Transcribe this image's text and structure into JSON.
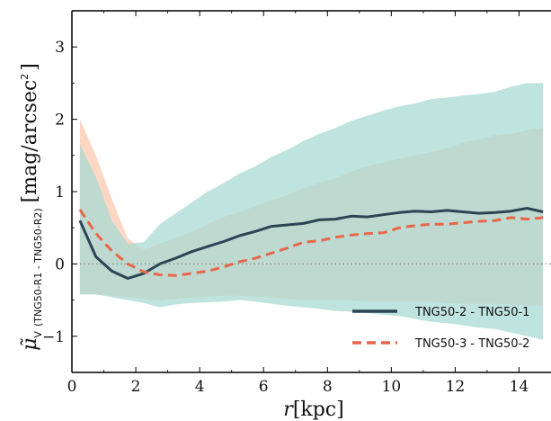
{
  "chart_data": {
    "type": "line",
    "xlabel": "r[kpc]",
    "xlabel_parts": {
      "var": "r",
      "unit": "[kpc]"
    },
    "ylabel_parts": {
      "symbol": "μ̃",
      "sub_v": "V",
      "sub_detail": "(TNG50-R1 - TNG50-R2)",
      "unit": "[mag/arcsec",
      "unit_sup": "2",
      "unit_close": "]"
    },
    "xlim": [
      0,
      15
    ],
    "ylim": [
      -1.5,
      3.5
    ],
    "xticks": [
      0,
      2,
      4,
      6,
      8,
      10,
      12,
      14
    ],
    "xtick_labels": [
      "0",
      "2",
      "4",
      "6",
      "8",
      "10",
      "12",
      "14"
    ],
    "yticks": [
      -1,
      0,
      1,
      2,
      3
    ],
    "ytick_labels": [
      "−1",
      "0",
      "1",
      "2",
      "3"
    ],
    "hline": 0,
    "legend_position": "center-right",
    "series": [
      {
        "name": "TNG50-2 - TNG50-1",
        "color": "#2b4555",
        "dash": "solid",
        "x": [
          0.25,
          0.75,
          1.25,
          1.75,
          2.25,
          2.75,
          3.25,
          3.75,
          4.25,
          4.75,
          5.25,
          5.75,
          6.25,
          6.75,
          7.25,
          7.75,
          8.25,
          8.75,
          9.25,
          9.75,
          10.25,
          10.75,
          11.25,
          11.75,
          12.25,
          12.75,
          13.25,
          13.75,
          14.25,
          14.75
        ],
        "y": [
          0.6,
          0.1,
          -0.1,
          -0.2,
          -0.13,
          0.0,
          0.08,
          0.17,
          0.24,
          0.31,
          0.39,
          0.45,
          0.52,
          0.54,
          0.56,
          0.61,
          0.62,
          0.66,
          0.65,
          0.68,
          0.71,
          0.73,
          0.72,
          0.74,
          0.72,
          0.7,
          0.71,
          0.73,
          0.77,
          0.72
        ]
      },
      {
        "name": "TNG50-3 - TNG50-2",
        "color": "#e8664a",
        "dash": "dashed",
        "x": [
          0.25,
          0.75,
          1.25,
          1.75,
          2.25,
          2.75,
          3.25,
          3.75,
          4.25,
          4.75,
          5.25,
          5.75,
          6.25,
          6.75,
          7.25,
          7.75,
          8.25,
          8.75,
          9.25,
          9.75,
          10.25,
          10.75,
          11.25,
          11.75,
          12.25,
          12.75,
          13.25,
          13.75,
          14.25,
          14.75
        ],
        "y": [
          0.75,
          0.42,
          0.18,
          0.0,
          -0.11,
          -0.15,
          -0.16,
          -0.13,
          -0.1,
          -0.04,
          0.03,
          0.08,
          0.15,
          0.22,
          0.3,
          0.32,
          0.37,
          0.4,
          0.42,
          0.43,
          0.5,
          0.53,
          0.55,
          0.55,
          0.57,
          0.59,
          0.6,
          0.64,
          0.62,
          0.64
        ]
      }
    ],
    "bands": [
      {
        "of": "TNG50-3 - TNG50-2",
        "color": "#fbd0b8",
        "x": [
          0.25,
          0.75,
          1.25,
          1.75,
          2.25,
          2.75,
          3.25,
          3.75,
          4.25,
          4.75,
          5.25,
          5.75,
          6.25,
          6.75,
          7.25,
          7.75,
          8.25,
          8.75,
          9.25,
          9.75,
          10.25,
          10.75,
          11.25,
          11.75,
          12.25,
          12.75,
          13.25,
          13.75,
          14.25,
          14.75
        ],
        "upper": [
          2.0,
          1.5,
          0.9,
          0.35,
          0.2,
          0.28,
          0.36,
          0.44,
          0.55,
          0.65,
          0.72,
          0.8,
          0.88,
          0.95,
          1.05,
          1.12,
          1.18,
          1.28,
          1.35,
          1.4,
          1.45,
          1.5,
          1.55,
          1.6,
          1.68,
          1.72,
          1.78,
          1.8,
          1.85,
          1.88
        ],
        "lower": [
          -0.42,
          -0.42,
          -0.44,
          -0.46,
          -0.48,
          -0.5,
          -0.48,
          -0.46,
          -0.45,
          -0.44,
          -0.44,
          -0.45,
          -0.46,
          -0.48,
          -0.5,
          -0.5,
          -0.5,
          -0.5,
          -0.52,
          -0.52,
          -0.52,
          -0.52,
          -0.52,
          -0.54,
          -0.55,
          -0.55,
          -0.55,
          -0.56,
          -0.57,
          -0.58
        ]
      },
      {
        "of": "TNG50-2 - TNG50-1",
        "color": "#a9d9d4",
        "x": [
          0.25,
          0.75,
          1.25,
          1.75,
          2.25,
          2.75,
          3.25,
          3.75,
          4.25,
          4.75,
          5.25,
          5.75,
          6.25,
          6.75,
          7.25,
          7.75,
          8.25,
          8.75,
          9.25,
          9.75,
          10.25,
          10.75,
          11.25,
          11.75,
          12.25,
          12.75,
          13.25,
          13.75,
          14.25,
          14.75
        ],
        "upper": [
          1.65,
          1.2,
          0.6,
          0.28,
          0.3,
          0.55,
          0.7,
          0.85,
          1.0,
          1.12,
          1.25,
          1.35,
          1.48,
          1.58,
          1.7,
          1.8,
          1.88,
          1.98,
          2.05,
          2.12,
          2.18,
          2.22,
          2.28,
          2.3,
          2.33,
          2.35,
          2.38,
          2.45,
          2.5,
          2.5
        ],
        "lower": [
          -0.42,
          -0.42,
          -0.46,
          -0.5,
          -0.54,
          -0.6,
          -0.56,
          -0.54,
          -0.53,
          -0.52,
          -0.5,
          -0.52,
          -0.55,
          -0.58,
          -0.6,
          -0.62,
          -0.65,
          -0.66,
          -0.68,
          -0.7,
          -0.72,
          -0.76,
          -0.8,
          -0.82,
          -0.85,
          -0.88,
          -0.9,
          -0.95,
          -1.0,
          -1.05
        ]
      }
    ]
  }
}
